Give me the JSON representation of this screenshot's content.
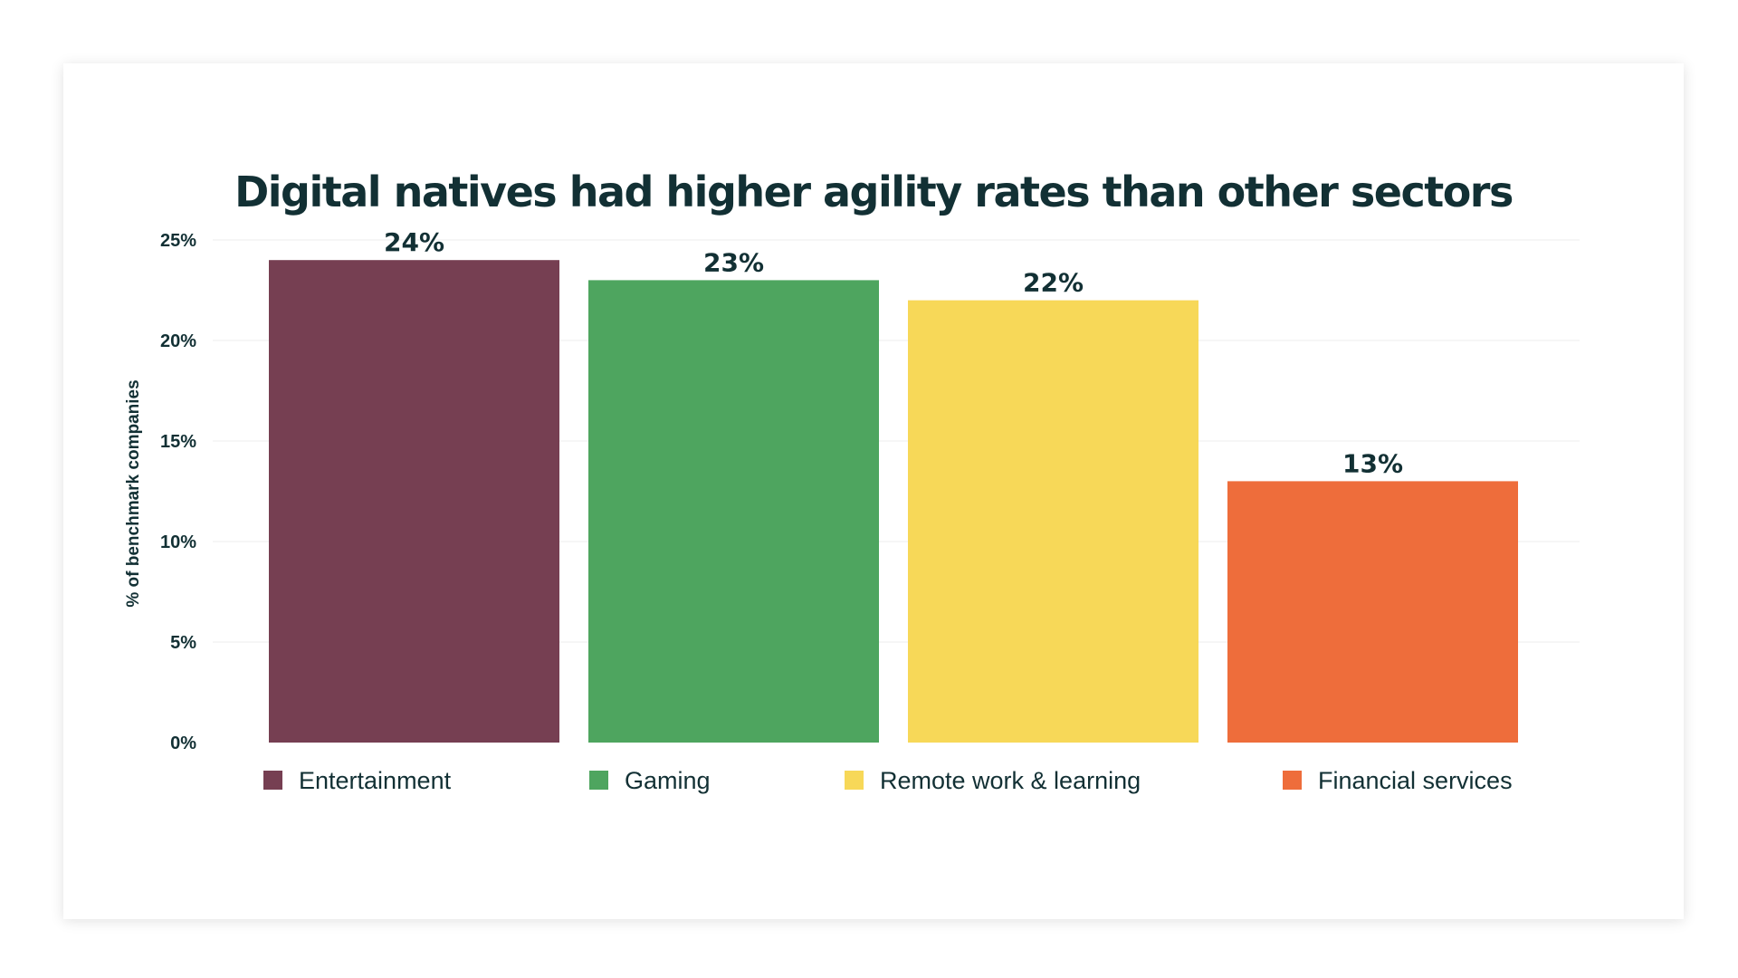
{
  "chart_data": {
    "type": "bar",
    "title": "Digital natives had higher agility rates than other sectors",
    "ylabel": "% of benchmark companies",
    "xlabel": "",
    "ylim": [
      0,
      25
    ],
    "yticks": [
      0,
      5,
      10,
      15,
      20,
      25
    ],
    "ytick_labels": [
      "0%",
      "5%",
      "10%",
      "15%",
      "20%",
      "25%"
    ],
    "categories": [
      "Entertainment",
      "Gaming",
      "Remote work & learning",
      "Financial services"
    ],
    "values": [
      24,
      23,
      22,
      13
    ],
    "data_labels": [
      "24%",
      "23%",
      "22%",
      "13%"
    ],
    "colors": [
      "#763F52",
      "#4EA55F",
      "#F7D858",
      "#EE6D3B"
    ],
    "grid": true,
    "legend": "bottom"
  }
}
